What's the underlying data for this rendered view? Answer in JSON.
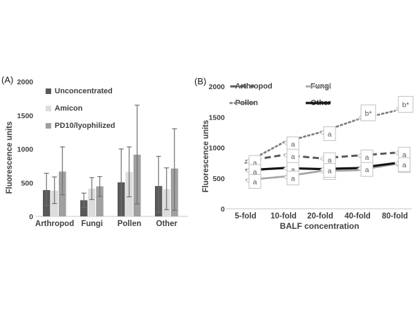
{
  "figure": {
    "panel_a_label": "(A)",
    "panel_b_label": "(B)"
  },
  "styles": {
    "text": "#404040",
    "axis_line": "#d9d9d9",
    "error_bar": "#6e6e6e",
    "callout_border": "#bfbfbf",
    "callout_fill": "#ffffff",
    "accent_dark": "#595959",
    "accent_light": "#dcdcdc",
    "accent_mid": "#a0a0a0"
  },
  "chart_data": [
    {
      "id": "A",
      "type": "bar",
      "title": "",
      "xlabel": "",
      "ylabel": "Fluorescence units",
      "ylim": [
        0,
        2000
      ],
      "yticks": [
        0,
        500,
        1000,
        1500,
        2000
      ],
      "grid": false,
      "legend_position": "inside-top-left",
      "categories": [
        "Arthropod",
        "Fungi",
        "Pollen",
        "Other"
      ],
      "series": [
        {
          "name": "Unconcentrated",
          "color": "#595959",
          "values": [
            390,
            240,
            505,
            450
          ],
          "err_high": [
            640,
            345,
            1000,
            890
          ],
          "err_low": [
            160,
            130,
            15,
            60
          ]
        },
        {
          "name": "Amicon",
          "color": "#dcdcdc",
          "values": [
            380,
            410,
            660,
            405
          ],
          "err_high": [
            585,
            575,
            1030,
            720
          ],
          "err_low": [
            190,
            250,
            290,
            100
          ]
        },
        {
          "name": "PD10/lyophilized",
          "color": "#a0a0a0",
          "values": [
            665,
            445,
            915,
            710
          ],
          "err_high": [
            1030,
            590,
            1650,
            1300
          ],
          "err_low": [
            320,
            295,
            185,
            90
          ]
        }
      ]
    },
    {
      "id": "B",
      "type": "line",
      "title": "",
      "xlabel": "BALF concentration",
      "ylabel": "Fluorescence units",
      "ylim": [
        0,
        2000
      ],
      "yticks": [
        0,
        500,
        1000,
        1500,
        2000
      ],
      "grid": false,
      "legend_position": "inside-top",
      "x": [
        "5-fold",
        "10-fold",
        "20-fold",
        "40-fold",
        "80-fold"
      ],
      "series": [
        {
          "name": "Arthropod",
          "color": "#595959",
          "style": "dashed",
          "width": 3,
          "values": [
            780,
            880,
            825,
            870,
            915
          ]
        },
        {
          "name": "Fungi",
          "color": "#a6a6a6",
          "style": "solid",
          "width": 2.8,
          "values": [
            470,
            525,
            615,
            630,
            730
          ]
        },
        {
          "name": "Pollen",
          "color": "#7f7f7f",
          "style": "dotted",
          "width": 2.8,
          "values": [
            750,
            1085,
            1250,
            1460,
            1600
          ]
        },
        {
          "name": "Other",
          "color": "#141414",
          "style": "solid",
          "width": 3.2,
          "values": [
            630,
            665,
            650,
            665,
            745
          ]
        }
      ],
      "annotations": [
        {
          "x_index": 0,
          "series": "Arthropod",
          "label": "a"
        },
        {
          "x_index": 0,
          "series": "Other",
          "label": "a"
        },
        {
          "x_index": 0,
          "series": "Fungi",
          "label": "a"
        },
        {
          "x_index": 1,
          "series": "Pollen",
          "label": "a"
        },
        {
          "x_index": 1,
          "series": "Arthropod",
          "label": "a"
        },
        {
          "x_index": 1,
          "series": "Other",
          "label": "a"
        },
        {
          "x_index": 1,
          "series": "Fungi",
          "label": "a"
        },
        {
          "x_index": 2,
          "series": "Fungi",
          "label": "a"
        },
        {
          "x_index": 2,
          "series": "Pollen",
          "label": "a"
        },
        {
          "x_index": 2,
          "series": "Arthropod",
          "label": "a"
        },
        {
          "x_index": 2,
          "series": "Other",
          "label": "a"
        },
        {
          "x_index": 3,
          "series": "Pollen",
          "label": "b*"
        },
        {
          "x_index": 3,
          "series": "Arthropod",
          "label": "a"
        },
        {
          "x_index": 3,
          "series": "Other",
          "label": "a"
        },
        {
          "x_index": 4,
          "series": "Fungi",
          "label": "a"
        },
        {
          "x_index": 4,
          "series": "Pollen",
          "label": "b*"
        },
        {
          "x_index": 4,
          "series": "Arthropod",
          "label": "a"
        },
        {
          "x_index": 4,
          "series": "Other",
          "label": "a"
        }
      ]
    }
  ]
}
